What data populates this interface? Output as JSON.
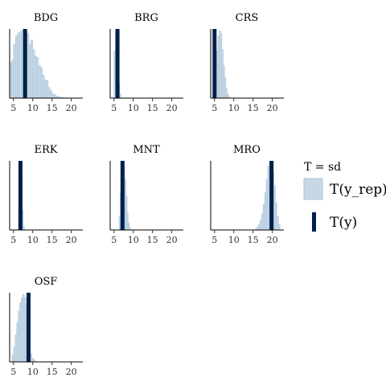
{
  "chart_data": {
    "type": "bar",
    "kind": "posterior-predictive-check histograms (facet grid)",
    "statistic_label": "T = sd",
    "legend": {
      "title": "T = sd",
      "entries": [
        {
          "name": "T(y_rep)",
          "color": "#c6d8e6",
          "stroke": "#a9c4da"
        },
        {
          "name": "T(y)",
          "color": "#011f4b"
        }
      ]
    },
    "xlim": [
      4,
      23
    ],
    "xticks": [
      5,
      10,
      15,
      20
    ],
    "grid": false,
    "colors": {
      "fill": "#c6d8e6",
      "stroke": "#a9c4da",
      "observed": "#011f4b"
    },
    "panels": [
      {
        "name": "BDG",
        "observed": 8.0,
        "bin_start": 4.0,
        "bin_width": 0.5,
        "counts": [
          52,
          56,
          80,
          92,
          96,
          98,
          100,
          96,
          85,
          96,
          80,
          86,
          72,
          62,
          60,
          48,
          45,
          34,
          27,
          26,
          16,
          11,
          7,
          5,
          3,
          2,
          1,
          1
        ]
      },
      {
        "name": "BRG",
        "observed": 5.9,
        "bin_start": 5.0,
        "bin_width": 0.3,
        "counts": [
          70,
          100,
          95,
          60,
          22,
          6
        ]
      },
      {
        "name": "CRS",
        "observed": 5.0,
        "bin_start": 4.8,
        "bin_width": 0.35,
        "counts": [
          25,
          45,
          70,
          92,
          100,
          96,
          72,
          48,
          30,
          14,
          6,
          2
        ]
      },
      {
        "name": "ERK",
        "observed": 6.8,
        "bin_start": 6.3,
        "bin_width": 0.25,
        "counts": [
          30,
          75,
          100,
          78,
          30,
          6
        ]
      },
      {
        "name": "MNT",
        "observed": 7.2,
        "bin_start": 6.3,
        "bin_width": 0.3,
        "counts": [
          20,
          55,
          80,
          100,
          95,
          75,
          50,
          25,
          10,
          3
        ]
      },
      {
        "name": "MRO",
        "observed": 19.8,
        "bin_start": 15.6,
        "bin_width": 0.4,
        "counts": [
          2,
          5,
          8,
          15,
          24,
          38,
          55,
          75,
          95,
          100,
          96,
          85,
          66,
          40,
          20,
          8
        ]
      },
      {
        "name": "OSF",
        "observed": 8.9,
        "bin_start": 4.6,
        "bin_width": 0.4,
        "counts": [
          10,
          22,
          40,
          58,
          75,
          88,
          95,
          100,
          96,
          84,
          64,
          30,
          12,
          5,
          3
        ]
      }
    ]
  }
}
